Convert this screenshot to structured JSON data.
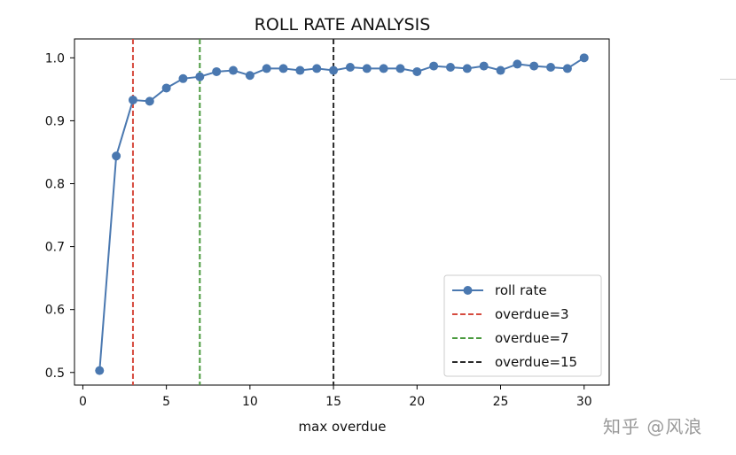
{
  "watermark": "知乎 @风浪",
  "chart_data": {
    "type": "line",
    "title": "ROLL RATE ANALYSIS",
    "xlabel": "max overdue",
    "ylabel": "",
    "xlim": [
      -0.5,
      31.5
    ],
    "ylim": [
      0.48,
      1.03
    ],
    "xticks": [
      0,
      5,
      10,
      15,
      20,
      25,
      30
    ],
    "yticks": [
      0.5,
      0.6,
      0.7,
      0.8,
      0.9,
      1.0
    ],
    "ytick_labels": [
      "0.5",
      "0.6",
      "0.7",
      "0.8",
      "0.9",
      "1.0"
    ],
    "grid": false,
    "legend_position": "lower-right",
    "series": [
      {
        "name": "roll rate",
        "color": "#4a78b0",
        "marker": "circle",
        "x": [
          1,
          2,
          3,
          4,
          5,
          6,
          7,
          8,
          9,
          10,
          11,
          12,
          13,
          14,
          15,
          16,
          17,
          18,
          19,
          20,
          21,
          22,
          23,
          24,
          25,
          26,
          27,
          28,
          29,
          30
        ],
        "y": [
          0.503,
          0.844,
          0.933,
          0.931,
          0.952,
          0.967,
          0.97,
          0.978,
          0.98,
          0.972,
          0.983,
          0.983,
          0.98,
          0.983,
          0.98,
          0.985,
          0.983,
          0.983,
          0.983,
          0.978,
          0.987,
          0.985,
          0.983,
          0.987,
          0.98,
          0.99,
          0.987,
          0.985,
          0.983,
          1.0
        ]
      }
    ],
    "vlines": [
      {
        "name": "overdue=3",
        "x": 3,
        "color": "#d64b3f",
        "style": "dashed"
      },
      {
        "name": "overdue=7",
        "x": 7,
        "color": "#4a9a3e",
        "style": "dashed"
      },
      {
        "name": "overdue=15",
        "x": 15,
        "color": "#2a2a2a",
        "style": "dashed"
      }
    ]
  }
}
